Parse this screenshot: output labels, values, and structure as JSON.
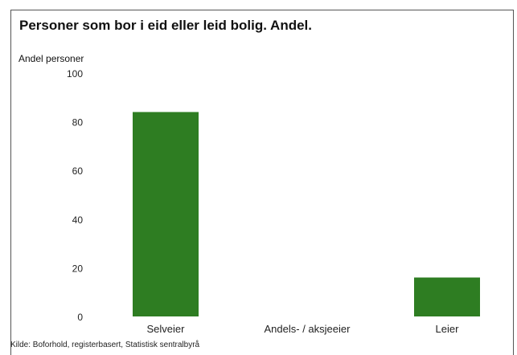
{
  "chart_data": {
    "type": "bar",
    "title": "Personer som bor i eid eller leid bolig. Andel.",
    "ylabel": "Andel personer",
    "xlabel": "",
    "categories": [
      "Selveier",
      "Andels- / aksjeeier",
      "Leier"
    ],
    "values": [
      84,
      0,
      16
    ],
    "ylim": [
      0,
      100
    ],
    "yticks": [
      0,
      20,
      40,
      60,
      80,
      100
    ],
    "bar_color": "#2e7d22",
    "grid": false,
    "legend": "none"
  },
  "source": "Kilde: Boforhold, registerbasert, Statistisk sentralbyrå"
}
